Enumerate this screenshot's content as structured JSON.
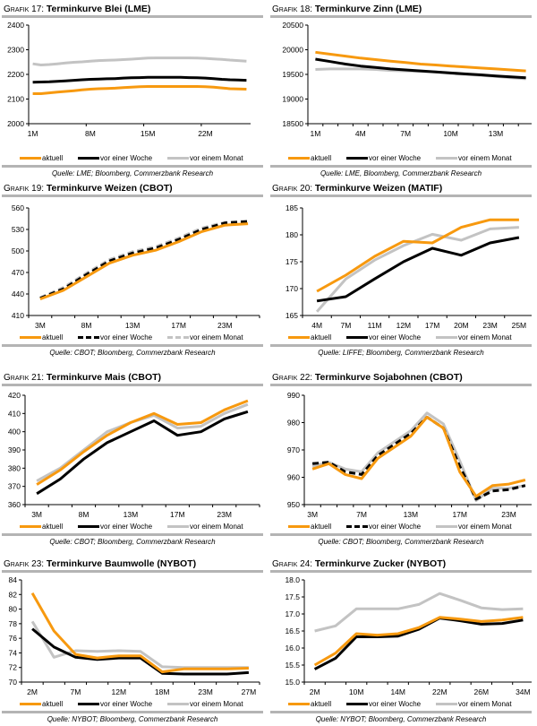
{
  "legend_colors": {
    "aktuell": "#f7990f",
    "woche": "#000000",
    "monat": "#c3c3c3"
  },
  "chart_data": [
    {
      "id": "g17",
      "label": "Grafik 17:",
      "title": "Terminkurve Blei (LME)",
      "type": "line",
      "ylim": [
        2000,
        2400
      ],
      "yticks": [
        2000,
        2100,
        2200,
        2300,
        2400
      ],
      "xlabels": [
        "1M",
        "8M",
        "15M",
        "22M"
      ],
      "xlabel_idx": [
        0,
        7,
        14,
        21
      ],
      "npoints": 27,
      "series": [
        {
          "name": "aktuell",
          "values": [
            2122,
            2122,
            2125,
            2128,
            2131,
            2134,
            2137,
            2140,
            2142,
            2143,
            2144,
            2146,
            2148,
            2150,
            2151,
            2151,
            2151,
            2151,
            2151,
            2151,
            2151,
            2150,
            2148,
            2145,
            2142,
            2141,
            2140
          ]
        },
        {
          "name": "vor einer Woche",
          "values": [
            2168,
            2169,
            2170,
            2172,
            2174,
            2176,
            2178,
            2180,
            2181,
            2182,
            2183,
            2185,
            2186,
            2187,
            2188,
            2188,
            2188,
            2188,
            2188,
            2187,
            2186,
            2185,
            2183,
            2180,
            2178,
            2177,
            2176
          ]
        },
        {
          "name": "vor einem Monat",
          "values": [
            2243,
            2238,
            2240,
            2243,
            2246,
            2249,
            2251,
            2254,
            2256,
            2257,
            2258,
            2260,
            2262,
            2264,
            2266,
            2267,
            2267,
            2267,
            2267,
            2267,
            2266,
            2265,
            2263,
            2261,
            2258,
            2256,
            2254
          ]
        }
      ],
      "legend": [
        "aktuell",
        "vor einer Woche",
        "vor einem Monat"
      ],
      "source": "Quelle: LME; Bloomberg, Commerzbank Research"
    },
    {
      "id": "g18",
      "label": "Grafik 18:",
      "title": "Terminkurve Zinn (LME)",
      "type": "line",
      "ylim": [
        18500,
        20500
      ],
      "yticks": [
        18500,
        19000,
        19500,
        20000,
        20500
      ],
      "xlabels": [
        "1M",
        "4M",
        "7M",
        "10M",
        "13M"
      ],
      "xlabel_idx": [
        0,
        3,
        6,
        9,
        12
      ],
      "npoints": 15,
      "series": [
        {
          "name": "aktuell",
          "values": [
            19950,
            19910,
            19870,
            19830,
            19800,
            19770,
            19740,
            19710,
            19690,
            19670,
            19650,
            19630,
            19610,
            19590,
            19570
          ]
        },
        {
          "name": "vor einer Woche",
          "values": [
            19810,
            19760,
            19710,
            19670,
            19640,
            19610,
            19590,
            19570,
            19550,
            19530,
            19510,
            19490,
            19470,
            19450,
            19430
          ]
        },
        {
          "name": "vor einem Monat",
          "values": [
            19600,
            19610,
            19610,
            19610,
            19600,
            19580,
            19570,
            19560,
            19550,
            19520,
            19500,
            19480,
            19460,
            19430,
            19410
          ]
        }
      ],
      "legend": [
        "aktuell",
        "vor einer Woche",
        "vor einem Monat"
      ],
      "source": "Quelle: LME, Bloomberg, Commerzbank Research"
    },
    {
      "id": "g19",
      "label": "Grafik 19:",
      "title": "Terminkurve Weizen (CBOT)",
      "type": "line",
      "ylim": [
        410,
        560
      ],
      "yticks": [
        410,
        440,
        470,
        500,
        530,
        560
      ],
      "xlabels": [
        "3M",
        "8M",
        "13M",
        "17M",
        "23M"
      ],
      "xlabel_idx": [
        0,
        2,
        4,
        6,
        8
      ],
      "npoints": 10,
      "series": [
        {
          "name": "aktuell",
          "values": [
            433,
            445,
            464,
            483,
            494,
            501,
            513,
            527,
            536,
            538
          ]
        },
        {
          "name": "vor einer Woche",
          "values": [
            434,
            447,
            467,
            486,
            497,
            504,
            516,
            530,
            539,
            541
          ]
        },
        {
          "name": "vor einem Monat",
          "values": [
            435,
            449,
            469,
            488,
            499,
            506,
            518,
            532,
            540,
            542
          ]
        }
      ],
      "legend": [
        "aktuell",
        "vor einer Woche",
        "vor einem Monat"
      ],
      "dashed": [
        false,
        true,
        true
      ],
      "source": "Quelle: CBOT; Bloomberg, Commerzbank Research"
    },
    {
      "id": "g20",
      "label": "Grafik 20:",
      "title": "Terminkurve Weizen (MATIF)",
      "type": "line",
      "ylim": [
        165,
        185
      ],
      "yticks": [
        165,
        170,
        175,
        180,
        185
      ],
      "xlabels": [
        "4M",
        "7M",
        "11M",
        "12M",
        "17M",
        "20M",
        "23M",
        "25M"
      ],
      "xlabel_idx": [
        0,
        1,
        2,
        3,
        4,
        5,
        6,
        7
      ],
      "npoints": 8,
      "series": [
        {
          "name": "aktuell",
          "values": [
            169.5,
            172.5,
            176.0,
            178.8,
            178.5,
            181.4,
            182.8,
            182.8
          ]
        },
        {
          "name": "vor einer Woche",
          "values": [
            167.7,
            168.5,
            171.8,
            175.0,
            177.5,
            176.2,
            178.5,
            179.5
          ]
        },
        {
          "name": "vor einem Monat",
          "values": [
            165.7,
            171.8,
            175.3,
            178.0,
            180.1,
            179.0,
            181.1,
            181.4
          ]
        }
      ],
      "legend": [
        "aktuell",
        "vor einer Woche",
        "vor einem Monat"
      ],
      "source": "Quelle: LIFFE; Bloomberg, Commerzbank Research"
    },
    {
      "id": "g21",
      "label": "Grafik 21:",
      "title": "Terminkurve Mais (CBOT)",
      "type": "line",
      "ylim": [
        360,
        420
      ],
      "yticks": [
        360,
        370,
        380,
        390,
        400,
        410,
        420
      ],
      "xlabels": [
        "3M",
        "8M",
        "13M",
        "17M",
        "23M"
      ],
      "xlabel_idx": [
        0,
        2,
        4,
        6,
        8
      ],
      "npoints": 10,
      "series": [
        {
          "name": "aktuell",
          "values": [
            371,
            379,
            389,
            398,
            405,
            410,
            404,
            405,
            412,
            417
          ]
        },
        {
          "name": "vor einer Woche",
          "values": [
            366,
            374,
            385,
            394,
            400,
            406,
            398,
            400,
            407,
            411
          ]
        },
        {
          "name": "vor einem Monat",
          "values": [
            373,
            380,
            390,
            400,
            405,
            409,
            402,
            403,
            410,
            415
          ]
        }
      ],
      "legend": [
        "aktuell",
        "vor einer Woche",
        "vor einem Monat"
      ],
      "source": "Quelle: CBOT; Bloomberg, Commerzbank Research"
    },
    {
      "id": "g22",
      "label": "Grafik 22:",
      "title": "Terminkurve Sojabohnen (CBOT)",
      "type": "line",
      "ylim": [
        950,
        990
      ],
      "yticks": [
        950,
        960,
        970,
        980,
        990
      ],
      "xlabels": [
        "3M",
        "7M",
        "13M",
        "17M",
        "23M"
      ],
      "xlabel_idx": [
        0,
        3,
        6,
        9,
        12
      ],
      "npoints": 14,
      "series": [
        {
          "name": "aktuell",
          "values": [
            963,
            965,
            961,
            959.5,
            967,
            971,
            975,
            982,
            978,
            962,
            953,
            957,
            957.5,
            959
          ]
        },
        {
          "name": "vor einer Woche",
          "values": [
            965,
            965.5,
            962,
            961,
            968,
            972,
            976,
            982,
            978,
            964,
            952,
            955,
            955.5,
            957
          ]
        },
        {
          "name": "vor einem Monat",
          "values": [
            964,
            965.5,
            963,
            962,
            969,
            973,
            977,
            983.5,
            979.5,
            966,
            951.5,
            956,
            956,
            957
          ]
        }
      ],
      "legend": [
        "aktuell",
        "vor einer Woche",
        "vor einem Monat"
      ],
      "dashed": [
        false,
        true,
        false
      ],
      "source": "Quelle: CBOT; Bloomberg, Commerzbank Research"
    },
    {
      "id": "g23",
      "label": "Grafik 23:",
      "title": "Terminkurve Baumwolle (NYBOT)",
      "type": "line",
      "ylim": [
        70,
        84
      ],
      "yticks": [
        70,
        72,
        74,
        76,
        78,
        80,
        82,
        84
      ],
      "xlabels": [
        "2M",
        "7M",
        "12M",
        "18M",
        "23M",
        "27M"
      ],
      "xlabel_idx": [
        0,
        2,
        4,
        6,
        8,
        10
      ],
      "npoints": 11,
      "series": [
        {
          "name": "aktuell",
          "values": [
            82.2,
            77.0,
            73.8,
            73.3,
            73.6,
            73.6,
            71.4,
            71.8,
            71.8,
            71.8,
            71.9
          ]
        },
        {
          "name": "vor einer Woche",
          "values": [
            77.3,
            74.8,
            73.4,
            73.1,
            73.3,
            73.3,
            71.2,
            71.1,
            71.1,
            71.1,
            71.3
          ]
        },
        {
          "name": "vor einem Monat",
          "values": [
            78.3,
            73.4,
            74.3,
            74.2,
            74.3,
            74.2,
            72.1,
            72.0,
            72.0,
            72.0,
            72.0
          ]
        }
      ],
      "legend": [
        "aktuell",
        "vor einer Woche",
        "vor einem Monat"
      ],
      "source": "Quelle: NYBOT; Bloomberg, Commerzbank Research"
    },
    {
      "id": "g24",
      "label": "Grafik 24:",
      "title": "Terminkurve Zucker (NYBOT)",
      "type": "line",
      "ylim": [
        15.0,
        18.0
      ],
      "yticks": [
        15.0,
        15.5,
        16.0,
        16.5,
        17.0,
        17.5,
        18.0
      ],
      "ydecimals": 1,
      "xlabels": [
        "2M",
        "10M",
        "14M",
        "22M",
        "26M",
        "34M"
      ],
      "xlabel_idx": [
        0,
        2,
        4,
        6,
        8,
        10
      ],
      "npoints": 11,
      "series": [
        {
          "name": "aktuell",
          "values": [
            15.5,
            15.85,
            16.42,
            16.38,
            16.42,
            16.6,
            16.9,
            16.85,
            16.78,
            16.82,
            16.9
          ]
        },
        {
          "name": "vor einer Woche",
          "values": [
            15.38,
            15.7,
            16.33,
            16.33,
            16.35,
            16.55,
            16.88,
            16.8,
            16.7,
            16.72,
            16.82
          ]
        },
        {
          "name": "vor einem Monat",
          "values": [
            16.5,
            16.65,
            17.15,
            17.15,
            17.15,
            17.28,
            17.6,
            17.4,
            17.18,
            17.13,
            17.15
          ]
        }
      ],
      "legend": [
        "aktuell",
        "vor einer Woche",
        "vor einem Monat"
      ],
      "source": "Quelle: NYBOT; Bloomberg, Commerzbank Research"
    }
  ]
}
